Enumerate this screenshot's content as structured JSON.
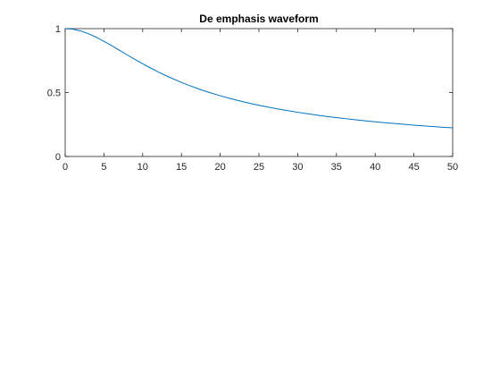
{
  "chart_data": {
    "type": "line",
    "title": "De emphasis waveform",
    "xlabel": "",
    "ylabel": "",
    "xlim": [
      0,
      50
    ],
    "ylim": [
      0,
      1
    ],
    "x_ticks": [
      0,
      5,
      10,
      15,
      20,
      25,
      30,
      35,
      40,
      45,
      50
    ],
    "x_tick_labels": [
      "0",
      "5",
      "10",
      "15",
      "20",
      "25",
      "30",
      "35",
      "40",
      "45",
      "50"
    ],
    "y_ticks": [
      0,
      0.5,
      1
    ],
    "y_tick_labels": [
      "0",
      "0.5",
      "1"
    ],
    "grid": false,
    "legend": "none",
    "series": [
      {
        "color": "#0072bd",
        "x": [
          0,
          1,
          2,
          3,
          4,
          5,
          6,
          7,
          8,
          9,
          10,
          11,
          12,
          13,
          14,
          15,
          16,
          17,
          18,
          19,
          20,
          21,
          22,
          23,
          24,
          25,
          26,
          27,
          28,
          29,
          30,
          31,
          32,
          33,
          34,
          35,
          36,
          37,
          38,
          39,
          40,
          41,
          42,
          43,
          44,
          45,
          46,
          47,
          48,
          49,
          50
        ],
        "y": [
          1.0,
          0.9953,
          0.9817,
          0.9603,
          0.9327,
          0.9008,
          0.8663,
          0.8305,
          0.7946,
          0.7592,
          0.725,
          0.6923,
          0.6613,
          0.6321,
          0.6048,
          0.5793,
          0.5554,
          0.5331,
          0.5124,
          0.4931,
          0.475,
          0.4581,
          0.4423,
          0.4275,
          0.4136,
          0.4005,
          0.3882,
          0.3767,
          0.3657,
          0.3554,
          0.3457,
          0.3364,
          0.3277,
          0.3194,
          0.3115,
          0.304,
          0.2968,
          0.29,
          0.2835,
          0.2773,
          0.2713,
          0.2656,
          0.2602,
          0.2549,
          0.2499,
          0.2451,
          0.2405,
          0.236,
          0.2317,
          0.2276,
          0.2236
        ]
      }
    ]
  }
}
